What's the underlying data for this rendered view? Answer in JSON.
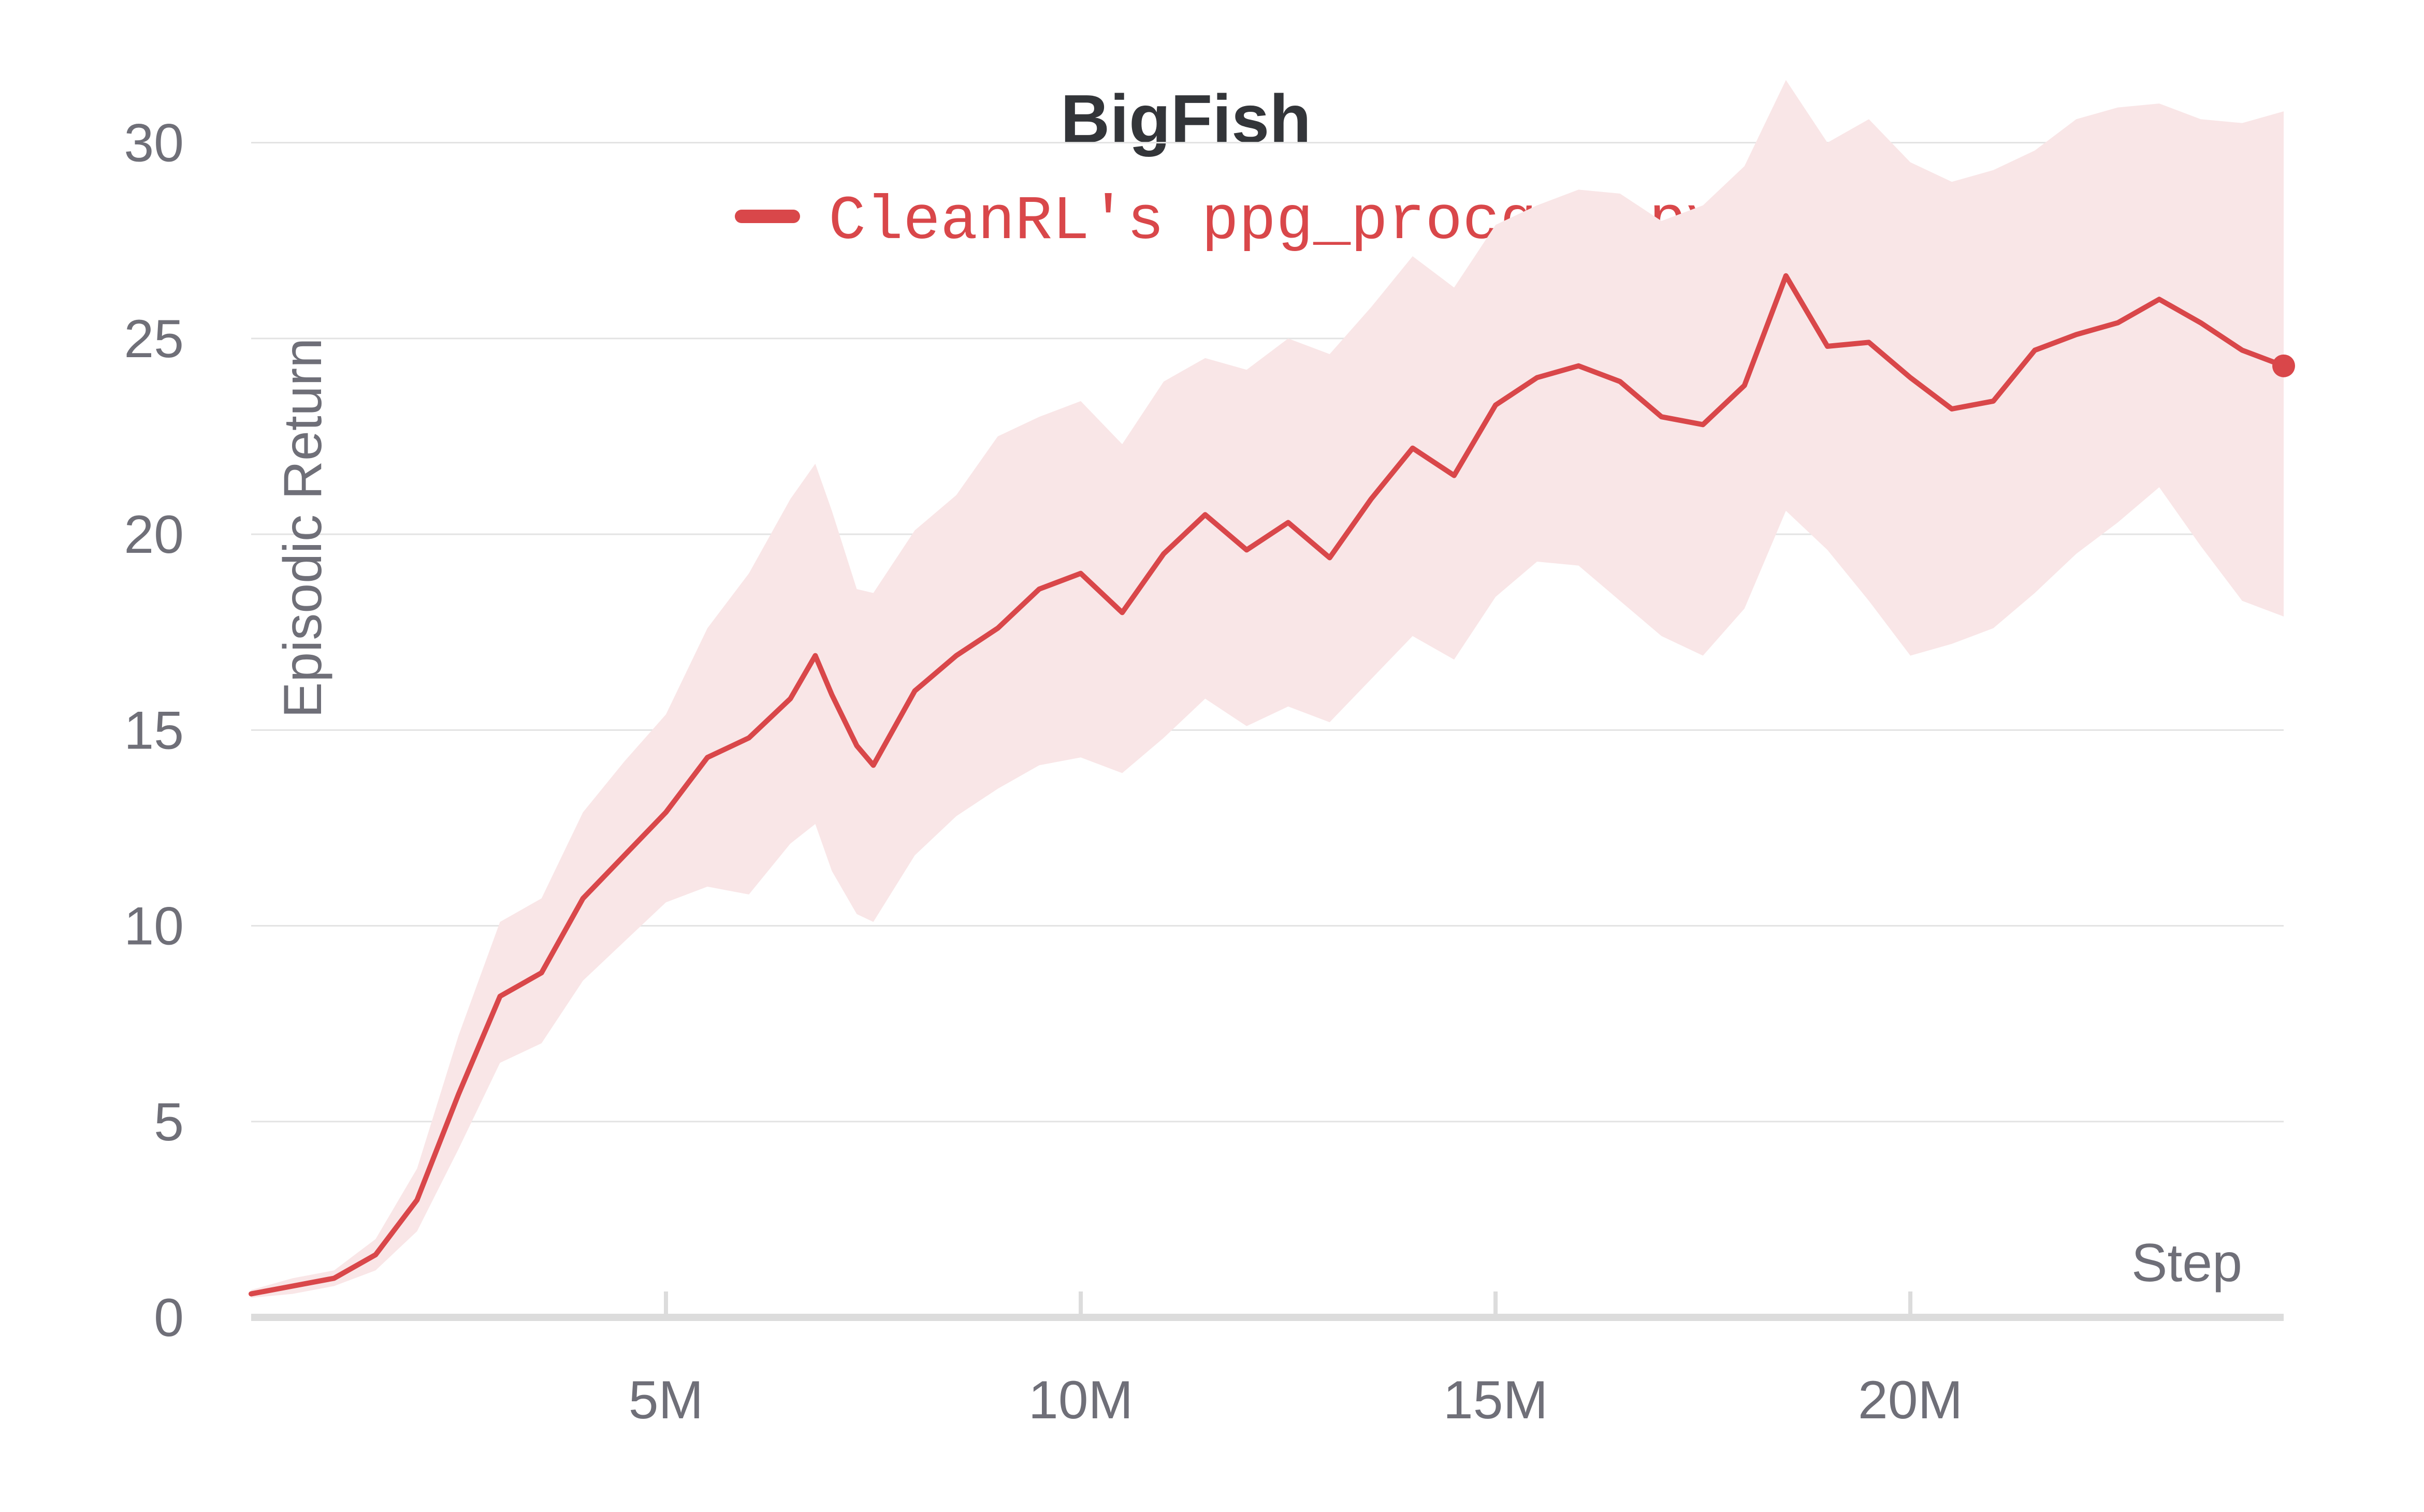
{
  "chart_data": {
    "type": "line",
    "title": "BigFish",
    "xlabel": "Step",
    "ylabel": "Episodic Return",
    "xlim": [
      0,
      24500000
    ],
    "ylim": [
      0,
      31
    ],
    "x_ticks": [
      5000000,
      10000000,
      15000000,
      20000000
    ],
    "x_tick_labels": [
      "5M",
      "10M",
      "15M",
      "20M"
    ],
    "y_ticks": [
      0,
      5,
      10,
      15,
      20,
      25,
      30
    ],
    "y_tick_labels": [
      "0",
      "5",
      "10",
      "15",
      "20",
      "25",
      "30"
    ],
    "grid": true,
    "legend_position": "top-center",
    "series": [
      {
        "name": "CleanRL's ppg_procgen.py",
        "color": "#d9474a",
        "band_color": "#f9e6e7",
        "x": [
          0,
          500000,
          1000000,
          1500000,
          2000000,
          2500000,
          3000000,
          3500000,
          4000000,
          4500000,
          5000000,
          5500000,
          6000000,
          6500000,
          6800000,
          7000000,
          7300000,
          7500000,
          8000000,
          8500000,
          9000000,
          9500000,
          10000000,
          10500000,
          11000000,
          11500000,
          12000000,
          12500000,
          13000000,
          13500000,
          14000000,
          14500000,
          15000000,
          15500000,
          16000000,
          16500000,
          17000000,
          17500000,
          18000000,
          18500000,
          19000000,
          19500000,
          20000000,
          20500000,
          21000000,
          21500000,
          22000000,
          22500000,
          23000000,
          23500000,
          24000000,
          24500000
        ],
        "y": [
          0.6,
          0.8,
          1.0,
          1.6,
          3.0,
          5.7,
          8.2,
          8.8,
          10.7,
          11.8,
          12.9,
          14.3,
          14.8,
          15.8,
          16.9,
          15.9,
          14.6,
          14.1,
          16.0,
          16.9,
          17.6,
          18.6,
          19.0,
          18.0,
          19.5,
          20.5,
          19.6,
          20.3,
          19.4,
          20.9,
          22.2,
          21.5,
          23.3,
          24.0,
          24.3,
          23.9,
          23.0,
          22.8,
          23.8,
          26.6,
          24.8,
          24.9,
          24.0,
          23.2,
          23.4,
          24.7,
          25.1,
          25.4,
          26.0,
          25.4,
          24.7,
          24.3
        ],
        "lower": [
          0.5,
          0.6,
          0.8,
          1.2,
          2.2,
          4.3,
          6.5,
          7.0,
          8.6,
          9.6,
          10.6,
          11.0,
          10.8,
          12.1,
          12.6,
          11.4,
          10.3,
          10.1,
          11.8,
          12.8,
          13.5,
          14.1,
          14.3,
          13.9,
          14.8,
          15.8,
          15.1,
          15.6,
          15.2,
          16.3,
          17.4,
          16.8,
          18.4,
          19.3,
          19.2,
          18.3,
          17.4,
          16.9,
          18.1,
          20.6,
          19.6,
          18.3,
          16.9,
          17.2,
          17.6,
          18.5,
          19.5,
          20.3,
          21.2,
          19.7,
          18.3,
          17.9
        ],
        "upper": [
          0.7,
          1.0,
          1.2,
          2.0,
          3.8,
          7.2,
          10.1,
          10.7,
          12.9,
          14.2,
          15.4,
          17.6,
          19.0,
          20.9,
          21.8,
          20.6,
          18.6,
          18.5,
          20.1,
          21.0,
          22.5,
          23.0,
          23.4,
          22.3,
          23.9,
          24.5,
          24.2,
          25.0,
          24.6,
          25.8,
          27.1,
          26.3,
          27.9,
          28.4,
          28.8,
          28.7,
          28.0,
          28.4,
          29.4,
          31.6,
          30.0,
          30.6,
          29.5,
          29.0,
          29.3,
          29.8,
          30.6,
          30.9,
          31.0,
          30.6,
          30.5,
          30.8
        ]
      }
    ]
  }
}
